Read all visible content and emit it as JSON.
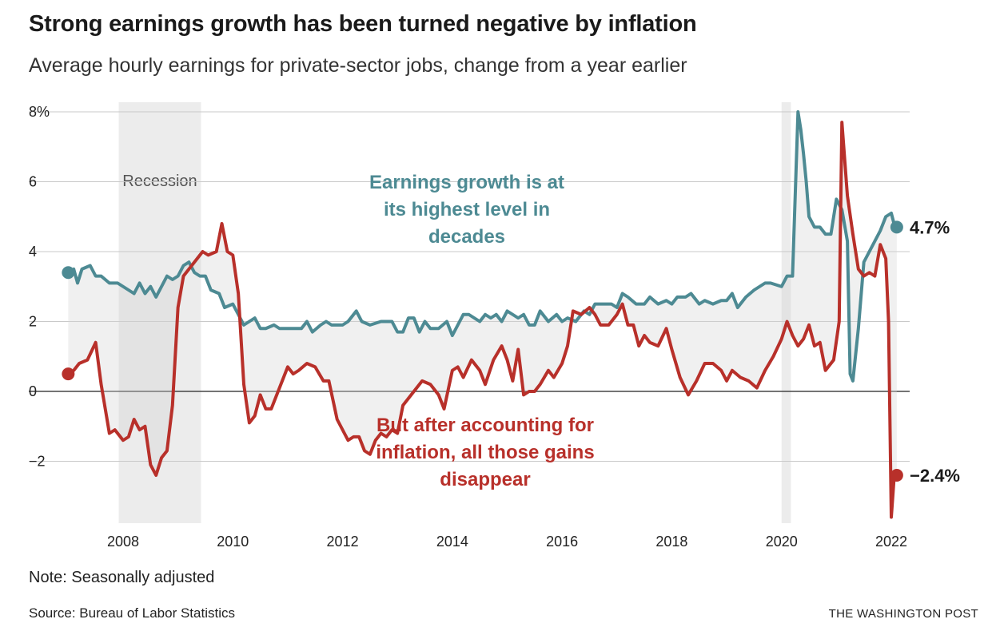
{
  "title": "Strong earnings growth has been turned negative by inflation",
  "subtitle": "Average hourly earnings for private-sector jobs, change from a year earlier",
  "note": "Note: Seasonally adjusted",
  "source": "Source: Bureau of Labor Statistics",
  "credit": "THE WASHINGTON POST",
  "chart_data": {
    "type": "line",
    "ylim": [
      -3.8,
      8.3
    ],
    "xlim": [
      2006.7,
      2022.1
    ],
    "yticks": [
      8,
      6,
      4,
      2,
      0,
      -2
    ],
    "ytick_labels": [
      "8%",
      "6",
      "4",
      "2",
      "0",
      "−2"
    ],
    "xticks": [
      2008,
      2010,
      2012,
      2014,
      2016,
      2018,
      2020,
      2022
    ],
    "xtick_labels": [
      "2008",
      "2010",
      "2012",
      "2014",
      "2016",
      "2018",
      "2020",
      "2022"
    ],
    "grid": true,
    "recessions": [
      {
        "start": 2007.92,
        "end": 2009.42,
        "label": "Recession"
      },
      {
        "start": 2020.0,
        "end": 2020.17,
        "label": ""
      }
    ],
    "annotations": [
      {
        "text": [
          "Earnings growth is at",
          "its highest level in",
          "decades"
        ],
        "series": "nominal"
      },
      {
        "text": [
          "But after accounting for",
          "inflation, all those gains",
          "disappear"
        ],
        "series": "real"
      }
    ],
    "series": [
      {
        "key": "nominal",
        "color": "#4d8a93",
        "end_label": "4.7%",
        "end_value": 4.7,
        "points": [
          [
            2007.0,
            3.4
          ],
          [
            2007.1,
            3.5
          ],
          [
            2007.17,
            3.1
          ],
          [
            2007.25,
            3.5
          ],
          [
            2007.4,
            3.6
          ],
          [
            2007.5,
            3.3
          ],
          [
            2007.6,
            3.3
          ],
          [
            2007.75,
            3.1
          ],
          [
            2007.9,
            3.1
          ],
          [
            2008.0,
            3.0
          ],
          [
            2008.2,
            2.8
          ],
          [
            2008.3,
            3.1
          ],
          [
            2008.4,
            2.8
          ],
          [
            2008.5,
            3.0
          ],
          [
            2008.6,
            2.7
          ],
          [
            2008.8,
            3.3
          ],
          [
            2008.9,
            3.2
          ],
          [
            2009.0,
            3.3
          ],
          [
            2009.1,
            3.6
          ],
          [
            2009.2,
            3.7
          ],
          [
            2009.3,
            3.4
          ],
          [
            2009.4,
            3.3
          ],
          [
            2009.5,
            3.3
          ],
          [
            2009.6,
            2.9
          ],
          [
            2009.75,
            2.8
          ],
          [
            2009.85,
            2.4
          ],
          [
            2010.0,
            2.5
          ],
          [
            2010.1,
            2.2
          ],
          [
            2010.2,
            1.9
          ],
          [
            2010.3,
            2.0
          ],
          [
            2010.4,
            2.1
          ],
          [
            2010.5,
            1.8
          ],
          [
            2010.6,
            1.8
          ],
          [
            2010.75,
            1.9
          ],
          [
            2010.85,
            1.8
          ],
          [
            2011.1,
            1.8
          ],
          [
            2011.25,
            1.8
          ],
          [
            2011.35,
            2.0
          ],
          [
            2011.45,
            1.7
          ],
          [
            2011.6,
            1.9
          ],
          [
            2011.7,
            2.0
          ],
          [
            2011.8,
            1.9
          ],
          [
            2012.0,
            1.9
          ],
          [
            2012.1,
            2.0
          ],
          [
            2012.25,
            2.3
          ],
          [
            2012.35,
            2.0
          ],
          [
            2012.5,
            1.9
          ],
          [
            2012.7,
            2.0
          ],
          [
            2012.9,
            2.0
          ],
          [
            2013.0,
            1.7
          ],
          [
            2013.1,
            1.7
          ],
          [
            2013.2,
            2.1
          ],
          [
            2013.3,
            2.1
          ],
          [
            2013.4,
            1.7
          ],
          [
            2013.5,
            2.0
          ],
          [
            2013.6,
            1.8
          ],
          [
            2013.75,
            1.8
          ],
          [
            2013.9,
            2.0
          ],
          [
            2014.0,
            1.6
          ],
          [
            2014.1,
            1.9
          ],
          [
            2014.2,
            2.2
          ],
          [
            2014.3,
            2.2
          ],
          [
            2014.4,
            2.1
          ],
          [
            2014.5,
            2.0
          ],
          [
            2014.6,
            2.2
          ],
          [
            2014.7,
            2.1
          ],
          [
            2014.8,
            2.2
          ],
          [
            2014.9,
            2.0
          ],
          [
            2015.0,
            2.3
          ],
          [
            2015.1,
            2.2
          ],
          [
            2015.2,
            2.1
          ],
          [
            2015.3,
            2.2
          ],
          [
            2015.4,
            1.9
          ],
          [
            2015.5,
            1.9
          ],
          [
            2015.6,
            2.3
          ],
          [
            2015.75,
            2.0
          ],
          [
            2015.9,
            2.2
          ],
          [
            2016.0,
            2.0
          ],
          [
            2016.1,
            2.1
          ],
          [
            2016.25,
            2.0
          ],
          [
            2016.4,
            2.3
          ],
          [
            2016.5,
            2.2
          ],
          [
            2016.6,
            2.5
          ],
          [
            2016.75,
            2.5
          ],
          [
            2016.9,
            2.5
          ],
          [
            2017.0,
            2.4
          ],
          [
            2017.1,
            2.8
          ],
          [
            2017.2,
            2.7
          ],
          [
            2017.35,
            2.5
          ],
          [
            2017.5,
            2.5
          ],
          [
            2017.6,
            2.7
          ],
          [
            2017.75,
            2.5
          ],
          [
            2017.9,
            2.6
          ],
          [
            2018.0,
            2.5
          ],
          [
            2018.1,
            2.7
          ],
          [
            2018.25,
            2.7
          ],
          [
            2018.35,
            2.8
          ],
          [
            2018.5,
            2.5
          ],
          [
            2018.6,
            2.6
          ],
          [
            2018.75,
            2.5
          ],
          [
            2018.9,
            2.6
          ],
          [
            2019.0,
            2.6
          ],
          [
            2019.1,
            2.8
          ],
          [
            2019.2,
            2.4
          ],
          [
            2019.35,
            2.7
          ],
          [
            2019.5,
            2.9
          ],
          [
            2019.6,
            3.0
          ],
          [
            2019.7,
            3.1
          ],
          [
            2019.8,
            3.1
          ],
          [
            2020.0,
            3.0
          ],
          [
            2020.1,
            3.3
          ],
          [
            2020.2,
            3.3
          ],
          [
            2020.3,
            8.0
          ],
          [
            2020.35,
            7.5
          ],
          [
            2020.4,
            6.8
          ],
          [
            2020.45,
            6.0
          ],
          [
            2020.5,
            5.0
          ],
          [
            2020.6,
            4.7
          ],
          [
            2020.7,
            4.7
          ],
          [
            2020.8,
            4.5
          ],
          [
            2020.9,
            4.5
          ],
          [
            2021.0,
            5.5
          ],
          [
            2021.1,
            5.2
          ],
          [
            2021.2,
            4.3
          ],
          [
            2021.25,
            0.5
          ],
          [
            2021.3,
            0.3
          ],
          [
            2021.4,
            1.8
          ],
          [
            2021.5,
            3.7
          ],
          [
            2021.6,
            4.0
          ],
          [
            2021.7,
            4.3
          ],
          [
            2021.8,
            4.6
          ],
          [
            2021.9,
            5.0
          ],
          [
            2022.0,
            5.1
          ],
          [
            2022.05,
            4.8
          ],
          [
            2022.1,
            4.7
          ]
        ]
      },
      {
        "key": "real",
        "color": "#b8302a",
        "end_label": "−2.4%",
        "end_value": -2.4,
        "points": [
          [
            2007.0,
            0.5
          ],
          [
            2007.1,
            0.6
          ],
          [
            2007.2,
            0.8
          ],
          [
            2007.35,
            0.9
          ],
          [
            2007.5,
            1.4
          ],
          [
            2007.6,
            0.2
          ],
          [
            2007.75,
            -1.2
          ],
          [
            2007.85,
            -1.1
          ],
          [
            2008.0,
            -1.4
          ],
          [
            2008.1,
            -1.3
          ],
          [
            2008.2,
            -0.8
          ],
          [
            2008.3,
            -1.1
          ],
          [
            2008.4,
            -1.0
          ],
          [
            2008.5,
            -2.1
          ],
          [
            2008.6,
            -2.4
          ],
          [
            2008.7,
            -1.9
          ],
          [
            2008.8,
            -1.7
          ],
          [
            2008.9,
            -0.4
          ],
          [
            2009.0,
            2.4
          ],
          [
            2009.1,
            3.3
          ],
          [
            2009.2,
            3.5
          ],
          [
            2009.35,
            3.8
          ],
          [
            2009.45,
            4.0
          ],
          [
            2009.55,
            3.9
          ],
          [
            2009.7,
            4.0
          ],
          [
            2009.8,
            4.8
          ],
          [
            2009.9,
            4.0
          ],
          [
            2010.0,
            3.9
          ],
          [
            2010.1,
            2.8
          ],
          [
            2010.2,
            0.2
          ],
          [
            2010.3,
            -0.9
          ],
          [
            2010.4,
            -0.7
          ],
          [
            2010.5,
            -0.1
          ],
          [
            2010.6,
            -0.5
          ],
          [
            2010.7,
            -0.5
          ],
          [
            2010.85,
            0.1
          ],
          [
            2011.0,
            0.7
          ],
          [
            2011.1,
            0.5
          ],
          [
            2011.2,
            0.6
          ],
          [
            2011.35,
            0.8
          ],
          [
            2011.5,
            0.7
          ],
          [
            2011.65,
            0.3
          ],
          [
            2011.75,
            0.3
          ],
          [
            2011.9,
            -0.8
          ],
          [
            2012.1,
            -1.4
          ],
          [
            2012.2,
            -1.3
          ],
          [
            2012.3,
            -1.3
          ],
          [
            2012.4,
            -1.7
          ],
          [
            2012.5,
            -1.8
          ],
          [
            2012.6,
            -1.4
          ],
          [
            2012.7,
            -1.2
          ],
          [
            2012.8,
            -1.3
          ],
          [
            2012.9,
            -1.1
          ],
          [
            2013.0,
            -1.2
          ],
          [
            2013.1,
            -0.4
          ],
          [
            2013.25,
            -0.1
          ],
          [
            2013.45,
            0.3
          ],
          [
            2013.6,
            0.2
          ],
          [
            2013.75,
            -0.1
          ],
          [
            2013.85,
            -0.5
          ],
          [
            2014.0,
            0.6
          ],
          [
            2014.1,
            0.7
          ],
          [
            2014.2,
            0.4
          ],
          [
            2014.35,
            0.9
          ],
          [
            2014.5,
            0.6
          ],
          [
            2014.6,
            0.2
          ],
          [
            2014.75,
            0.9
          ],
          [
            2014.9,
            1.3
          ],
          [
            2015.0,
            0.9
          ],
          [
            2015.1,
            0.3
          ],
          [
            2015.2,
            1.2
          ],
          [
            2015.3,
            -0.1
          ],
          [
            2015.4,
            0.0
          ],
          [
            2015.5,
            0.0
          ],
          [
            2015.6,
            0.2
          ],
          [
            2015.75,
            0.6
          ],
          [
            2015.85,
            0.4
          ],
          [
            2016.0,
            0.8
          ],
          [
            2016.1,
            1.3
          ],
          [
            2016.2,
            2.3
          ],
          [
            2016.35,
            2.2
          ],
          [
            2016.5,
            2.4
          ],
          [
            2016.6,
            2.2
          ],
          [
            2016.7,
            1.9
          ],
          [
            2016.85,
            1.9
          ],
          [
            2017.0,
            2.2
          ],
          [
            2017.1,
            2.5
          ],
          [
            2017.2,
            1.9
          ],
          [
            2017.3,
            1.9
          ],
          [
            2017.4,
            1.3
          ],
          [
            2017.5,
            1.6
          ],
          [
            2017.6,
            1.4
          ],
          [
            2017.75,
            1.3
          ],
          [
            2017.9,
            1.8
          ],
          [
            2018.0,
            1.2
          ],
          [
            2018.15,
            0.4
          ],
          [
            2018.3,
            -0.1
          ],
          [
            2018.45,
            0.3
          ],
          [
            2018.6,
            0.8
          ],
          [
            2018.75,
            0.8
          ],
          [
            2018.9,
            0.6
          ],
          [
            2019.0,
            0.3
          ],
          [
            2019.1,
            0.6
          ],
          [
            2019.25,
            0.4
          ],
          [
            2019.4,
            0.3
          ],
          [
            2019.55,
            0.1
          ],
          [
            2019.7,
            0.6
          ],
          [
            2019.85,
            1.0
          ],
          [
            2020.0,
            1.5
          ],
          [
            2020.1,
            2.0
          ],
          [
            2020.2,
            1.6
          ],
          [
            2020.3,
            1.3
          ],
          [
            2020.4,
            1.5
          ],
          [
            2020.5,
            1.9
          ],
          [
            2020.6,
            1.3
          ],
          [
            2020.7,
            1.4
          ],
          [
            2020.8,
            0.6
          ],
          [
            2020.95,
            0.9
          ],
          [
            2021.05,
            2.0
          ],
          [
            2021.1,
            7.7
          ],
          [
            2021.2,
            5.6
          ],
          [
            2021.3,
            4.5
          ],
          [
            2021.4,
            3.5
          ],
          [
            2021.5,
            3.3
          ],
          [
            2021.6,
            3.4
          ],
          [
            2021.7,
            3.3
          ],
          [
            2021.8,
            4.2
          ],
          [
            2021.9,
            3.8
          ],
          [
            2021.95,
            2.0
          ],
          [
            2022.0,
            -3.6
          ],
          [
            2022.05,
            -2.5
          ],
          [
            2022.1,
            -2.4
          ]
        ]
      }
    ]
  }
}
